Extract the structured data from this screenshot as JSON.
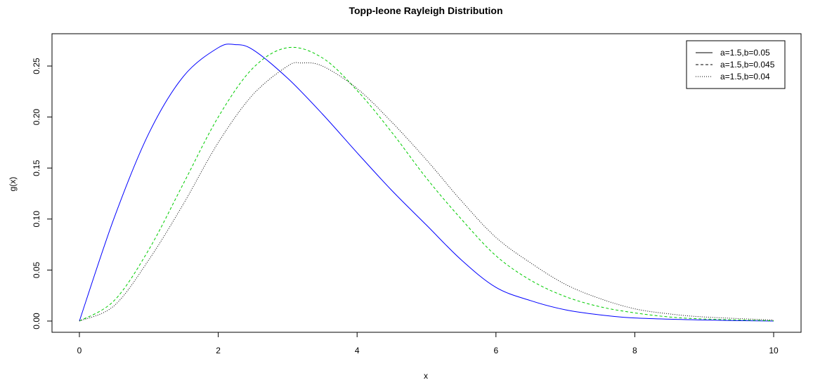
{
  "chart_data": {
    "type": "line",
    "title": "Topp-leone Rayleigh Distribution",
    "xlabel": "x",
    "ylabel": "g(x)",
    "xlim": [
      0,
      10
    ],
    "ylim": [
      0,
      0.27
    ],
    "xticks": [
      "0",
      "2",
      "4",
      "6",
      "8",
      "10"
    ],
    "yticks": [
      "0.00",
      "0.05",
      "0.10",
      "0.15",
      "0.20",
      "0.25"
    ],
    "grid": false,
    "legend_position": "top-right",
    "series": [
      {
        "name": "a=1.5,b=0.05",
        "color": "#0000ff",
        "style": "solid",
        "legend_color": "#000000",
        "x": [
          0,
          0.5,
          1,
          1.5,
          2,
          2.24,
          2.5,
          3,
          3.5,
          4,
          4.5,
          5,
          5.5,
          6,
          6.5,
          7,
          7.5,
          8,
          9,
          10
        ],
        "y": [
          0,
          0.101,
          0.184,
          0.24,
          0.268,
          0.271,
          0.266,
          0.238,
          0.203,
          0.165,
          0.128,
          0.094,
          0.06,
          0.033,
          0.02,
          0.011,
          0.006,
          0.003,
          0.001,
          0
        ]
      },
      {
        "name": "a=1.5,b=0.045",
        "color": "#00cc00",
        "style": "dashed",
        "legend_color": "#000000",
        "x": [
          0,
          0.5,
          1,
          1.5,
          2,
          2.5,
          3,
          3.5,
          4,
          4.5,
          5,
          5.5,
          6,
          6.5,
          7,
          7.5,
          8,
          8.5,
          9,
          10
        ],
        "y": [
          0,
          0.02,
          0.07,
          0.135,
          0.2,
          0.248,
          0.268,
          0.258,
          0.226,
          0.185,
          0.14,
          0.1,
          0.064,
          0.04,
          0.024,
          0.014,
          0.008,
          0.004,
          0.002,
          0.0003
        ]
      },
      {
        "name": "a=1.5,b=0.04",
        "color": "#000000",
        "style": "dotted",
        "legend_color": "#000000",
        "x": [
          0,
          0.5,
          1,
          1.5,
          2,
          2.5,
          3,
          3.2,
          3.5,
          4,
          4.5,
          5,
          5.5,
          6,
          6.5,
          7,
          7.5,
          8,
          8.5,
          9,
          10
        ],
        "y": [
          0,
          0.015,
          0.06,
          0.115,
          0.175,
          0.222,
          0.25,
          0.253,
          0.25,
          0.228,
          0.195,
          0.158,
          0.118,
          0.082,
          0.057,
          0.036,
          0.022,
          0.012,
          0.007,
          0.004,
          0.001
        ]
      }
    ]
  }
}
